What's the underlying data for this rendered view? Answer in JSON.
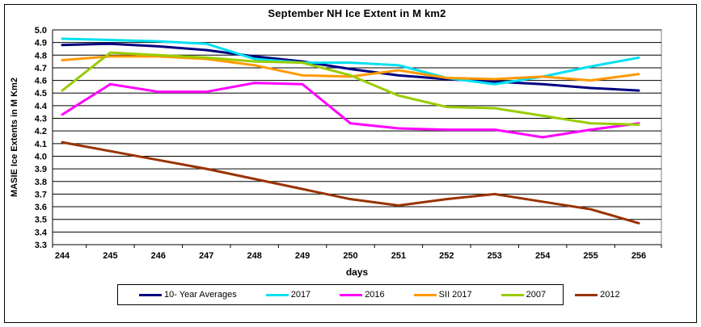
{
  "title": "September NH Ice Extent in M km2",
  "x_axis": {
    "label": "days"
  },
  "y_axis": {
    "label": "MASIE Ice Extents in M Km2"
  },
  "chart_data": {
    "type": "line",
    "title": "September NH Ice Extent in M km2",
    "xlabel": "days",
    "ylabel": "MASIE Ice Extents in M Km2",
    "categories": [
      244,
      245,
      246,
      247,
      248,
      249,
      250,
      251,
      252,
      253,
      254,
      255,
      256
    ],
    "ylim": [
      3.3,
      5.0
    ],
    "ytick_step": 0.1,
    "grid": "horizontal",
    "legend_position": "bottom",
    "gridline_color": "#000000",
    "plot_border_color": "#808080",
    "series": [
      {
        "name": "10- Year Averages",
        "color": "#000080",
        "values": [
          4.88,
          4.89,
          4.87,
          4.84,
          4.79,
          4.75,
          4.69,
          4.64,
          4.61,
          4.59,
          4.57,
          4.54,
          4.52
        ]
      },
      {
        "name": "2017",
        "color": "#00E0F0",
        "values": [
          4.93,
          4.92,
          4.91,
          4.89,
          4.77,
          4.74,
          4.74,
          4.72,
          4.62,
          4.57,
          4.63,
          4.71,
          4.78
        ]
      },
      {
        "name": "2016",
        "color": "#FF00FF",
        "values": [
          4.33,
          4.57,
          4.51,
          4.51,
          4.58,
          4.57,
          4.26,
          4.22,
          4.21,
          4.21,
          4.15,
          4.21,
          4.26
        ]
      },
      {
        "name": "SII 2017",
        "color": "#FF9900",
        "values": [
          4.76,
          4.79,
          4.79,
          4.77,
          4.72,
          4.64,
          4.63,
          4.68,
          4.62,
          4.61,
          4.63,
          4.6,
          4.65
        ]
      },
      {
        "name": "2007",
        "color": "#99CC00",
        "values": [
          4.52,
          4.82,
          4.8,
          4.78,
          4.75,
          4.74,
          4.64,
          4.48,
          4.39,
          4.38,
          4.32,
          4.26,
          4.25
        ]
      },
      {
        "name": "2012",
        "color": "#993300",
        "values": [
          4.11,
          4.04,
          3.97,
          3.9,
          3.82,
          3.74,
          3.66,
          3.61,
          3.66,
          3.7,
          3.64,
          3.58,
          3.47
        ]
      }
    ]
  }
}
